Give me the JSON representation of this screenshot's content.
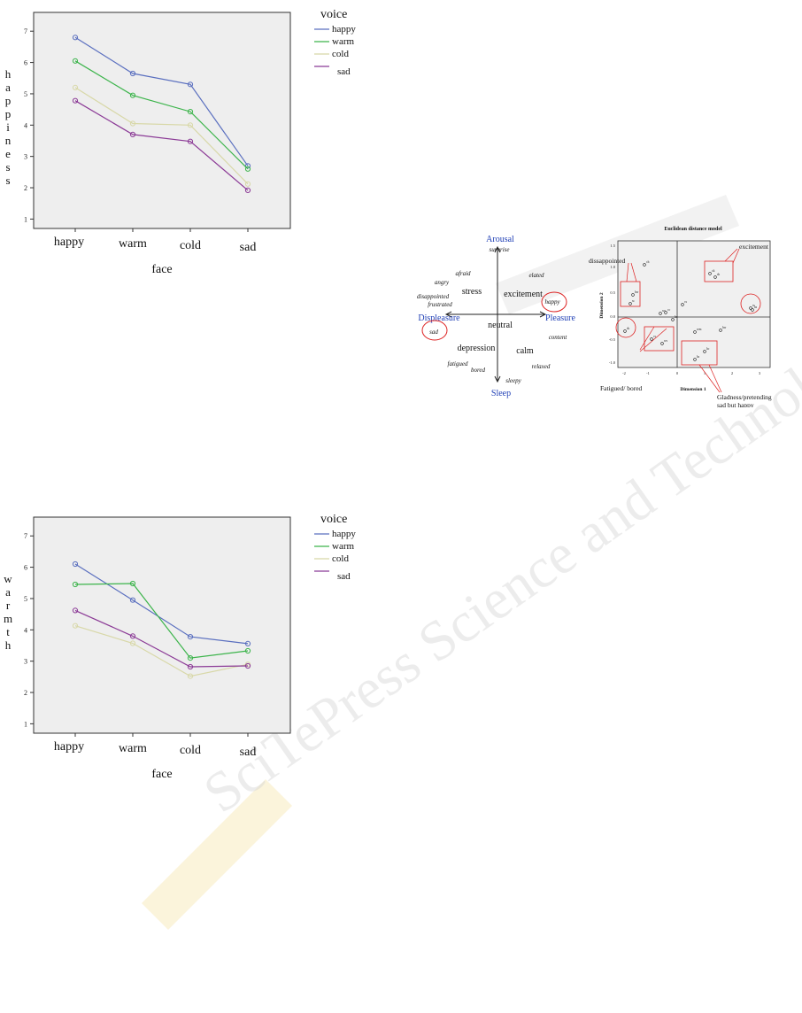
{
  "watermark_text": "SciTePress Science and Technology Publications",
  "chart_data": [
    {
      "type": "line",
      "id": "happiness",
      "xlabel": "face",
      "ylabel": "happiness",
      "categories": [
        "happy",
        "warm",
        "cold",
        "sad"
      ],
      "ylim": [
        0.7,
        7.6
      ],
      "yticks": [
        1,
        2,
        3,
        4,
        5,
        6,
        7
      ],
      "legend_title": "voice",
      "grid": false,
      "series": [
        {
          "name": "happy",
          "color": "#5a6fbf",
          "values": [
            6.8,
            5.65,
            5.3,
            2.7
          ]
        },
        {
          "name": "warm",
          "color": "#3cb44b",
          "values": [
            6.05,
            4.95,
            4.43,
            2.6
          ]
        },
        {
          "name": "cold",
          "color": "#d8d8a8",
          "values": [
            5.2,
            4.05,
            4.0,
            2.12
          ]
        },
        {
          "name": "sad",
          "color": "#8b3a96",
          "values": [
            4.78,
            3.7,
            3.48,
            1.92
          ]
        }
      ]
    },
    {
      "type": "line",
      "id": "warmth",
      "xlabel": "face",
      "ylabel": "warmth",
      "categories": [
        "happy",
        "warm",
        "cold",
        "sad"
      ],
      "ylim": [
        0.7,
        7.6
      ],
      "yticks": [
        1,
        2,
        3,
        4,
        5,
        6,
        7
      ],
      "legend_title": "voice",
      "grid": false,
      "series": [
        {
          "name": "happy",
          "color": "#5a6fbf",
          "values": [
            6.1,
            4.95,
            3.78,
            3.56
          ]
        },
        {
          "name": "warm",
          "color": "#3cb44b",
          "values": [
            5.45,
            5.48,
            3.1,
            3.33
          ]
        },
        {
          "name": "cold",
          "color": "#d8d8a8",
          "values": [
            4.13,
            3.57,
            2.52,
            2.9
          ]
        },
        {
          "name": "sad",
          "color": "#8b3a96",
          "values": [
            4.62,
            3.8,
            2.82,
            2.85
          ]
        }
      ]
    }
  ],
  "circumplex": {
    "axes": {
      "top": "Arousal",
      "bottom": "Sleep",
      "left": "Displeasure",
      "right": "Pleasure"
    },
    "words": [
      {
        "t": "surprise",
        "italic": true
      },
      {
        "t": "afraid",
        "italic": true
      },
      {
        "t": "elated",
        "italic": true
      },
      {
        "t": "angry",
        "italic": true
      },
      {
        "t": "stress",
        "italic": false
      },
      {
        "t": "excitement",
        "italic": false
      },
      {
        "t": "disappointed",
        "italic": true
      },
      {
        "t": "frustrated",
        "italic": true
      },
      {
        "t": "happy",
        "italic": true
      },
      {
        "t": "neutral",
        "italic": false
      },
      {
        "t": "sad",
        "italic": true
      },
      {
        "t": "content",
        "italic": true
      },
      {
        "t": "depression",
        "italic": false
      },
      {
        "t": "calm",
        "italic": false
      },
      {
        "t": "fatigued",
        "italic": true
      },
      {
        "t": "bored",
        "italic": true
      },
      {
        "t": "relaxed",
        "italic": true
      },
      {
        "t": "sleepy",
        "italic": true
      }
    ]
  },
  "mds": {
    "title": "Euclidean distance model",
    "xlabel": "Dimension 1",
    "ylabel": "Dimension 2",
    "xticks": [
      "-2",
      "-1",
      "0",
      "1",
      "2",
      "3"
    ],
    "yticks": [
      "1.5",
      "1.0",
      "0.5",
      "0.0",
      "-0.5",
      "-1.0"
    ],
    "annotations": [
      "excitement",
      "dissappointed",
      "Fatigued/ bored",
      "Gladness/pretending",
      "sad but happy"
    ],
    "points": [
      {
        "label": "ch"
      },
      {
        "label": "ck"
      },
      {
        "label": "sh"
      },
      {
        "label": "hw"
      },
      {
        "label": "sc"
      },
      {
        "label": "wc"
      },
      {
        "label": "cc"
      },
      {
        "label": "cs"
      },
      {
        "label": "hc"
      },
      {
        "label": "hs"
      },
      {
        "label": "sk"
      },
      {
        "label": "cs"
      },
      {
        "label": "ws"
      },
      {
        "label": "wm"
      },
      {
        "label": "hw"
      },
      {
        "label": "hc"
      },
      {
        "label": "hs"
      },
      {
        "label": "ss"
      }
    ]
  }
}
